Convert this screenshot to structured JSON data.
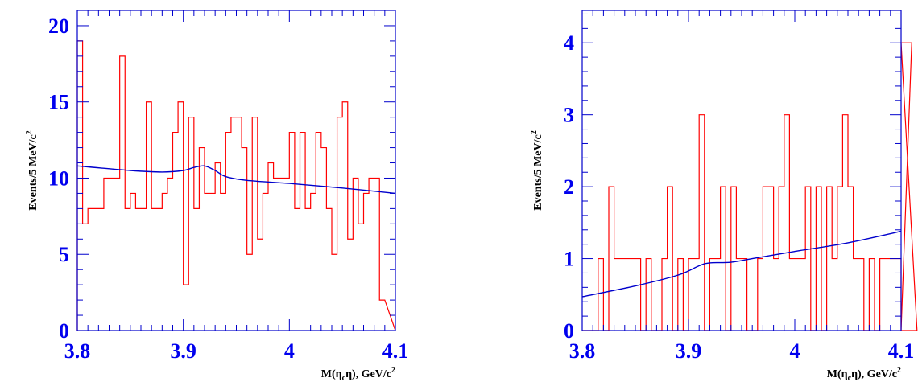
{
  "chart_data": [
    {
      "type": "histogram",
      "xlabel_main": "M(η",
      "xlabel_sub": "c",
      "xlabel_rest": "η), GeV/c",
      "xlabel_sup": "2",
      "ylabel_main": "Events/5 MeV/c",
      "ylabel_sup": "2",
      "xlim": [
        3.8,
        4.1
      ],
      "ylim": [
        0,
        21
      ],
      "xticks": [
        "3.8",
        "3.9",
        "4",
        "4.1"
      ],
      "xtick_values": [
        3.8,
        3.9,
        4.0,
        4.1
      ],
      "yticks": [
        "0",
        "5",
        "10",
        "15",
        "20"
      ],
      "ytick_values": [
        0,
        5,
        10,
        15,
        20
      ],
      "bin_width": 0.005,
      "hist_color": "#ff0000",
      "fit_color": "#0000cc",
      "counts": [
        19,
        7,
        8,
        8,
        8,
        10,
        10,
        10,
        18,
        8,
        9,
        8,
        8,
        15,
        8,
        8,
        9,
        10,
        13,
        15,
        3,
        14,
        8,
        12,
        9,
        9,
        11,
        9,
        13,
        14,
        14,
        12,
        5,
        14,
        6,
        9,
        11,
        10,
        10,
        10,
        13,
        8,
        13,
        8,
        9,
        13,
        12,
        8,
        5,
        14,
        15,
        6,
        10,
        7,
        9,
        10,
        10,
        2
      ],
      "fit": {
        "x": [
          3.8,
          3.85,
          3.88,
          3.9,
          3.91,
          3.92,
          3.93,
          3.94,
          3.96,
          4.0,
          4.05,
          4.1
        ],
        "y": [
          10.8,
          10.5,
          10.4,
          10.5,
          10.7,
          10.8,
          10.5,
          10.1,
          9.85,
          9.65,
          9.35,
          9.0
        ]
      }
    },
    {
      "type": "histogram",
      "xlabel_main": "M(η",
      "xlabel_sub": "c",
      "xlabel_rest": "η), GeV/c",
      "xlabel_sup": "2",
      "ylabel_main": "Events/5 MeV/c",
      "ylabel_sup": "2",
      "xlim": [
        3.8,
        4.1
      ],
      "ylim": [
        0,
        4.45
      ],
      "xticks": [
        "3.8",
        "3.9",
        "4",
        "4.1"
      ],
      "xtick_values": [
        3.8,
        3.9,
        4.0,
        4.1
      ],
      "yticks": [
        "0",
        "1",
        "2",
        "3",
        "4"
      ],
      "ytick_values": [
        0,
        1,
        2,
        3,
        4
      ],
      "bin_width": 0.005,
      "hist_color": "#ff0000",
      "fit_color": "#0000cc",
      "counts": [
        0,
        0,
        0,
        1,
        0,
        2,
        1,
        1,
        1,
        1,
        1,
        0,
        1,
        0,
        0,
        1,
        2,
        0,
        1,
        0,
        1,
        1,
        3,
        0,
        1,
        1,
        2,
        0,
        2,
        1,
        1,
        0,
        0,
        1,
        2,
        2,
        1,
        2,
        3,
        1,
        1,
        1,
        2,
        0,
        2,
        0,
        2,
        1,
        2,
        3,
        2,
        1,
        1,
        0,
        1,
        0,
        1,
        1,
        1,
        1,
        0,
        0,
        4,
        0
      ],
      "fit": {
        "x": [
          3.8,
          3.85,
          3.89,
          3.91,
          3.92,
          3.94,
          3.96,
          4.0,
          4.05,
          4.1
        ],
        "y": [
          0.47,
          0.62,
          0.77,
          0.9,
          0.94,
          0.95,
          1.0,
          1.1,
          1.22,
          1.38
        ]
      }
    }
  ]
}
